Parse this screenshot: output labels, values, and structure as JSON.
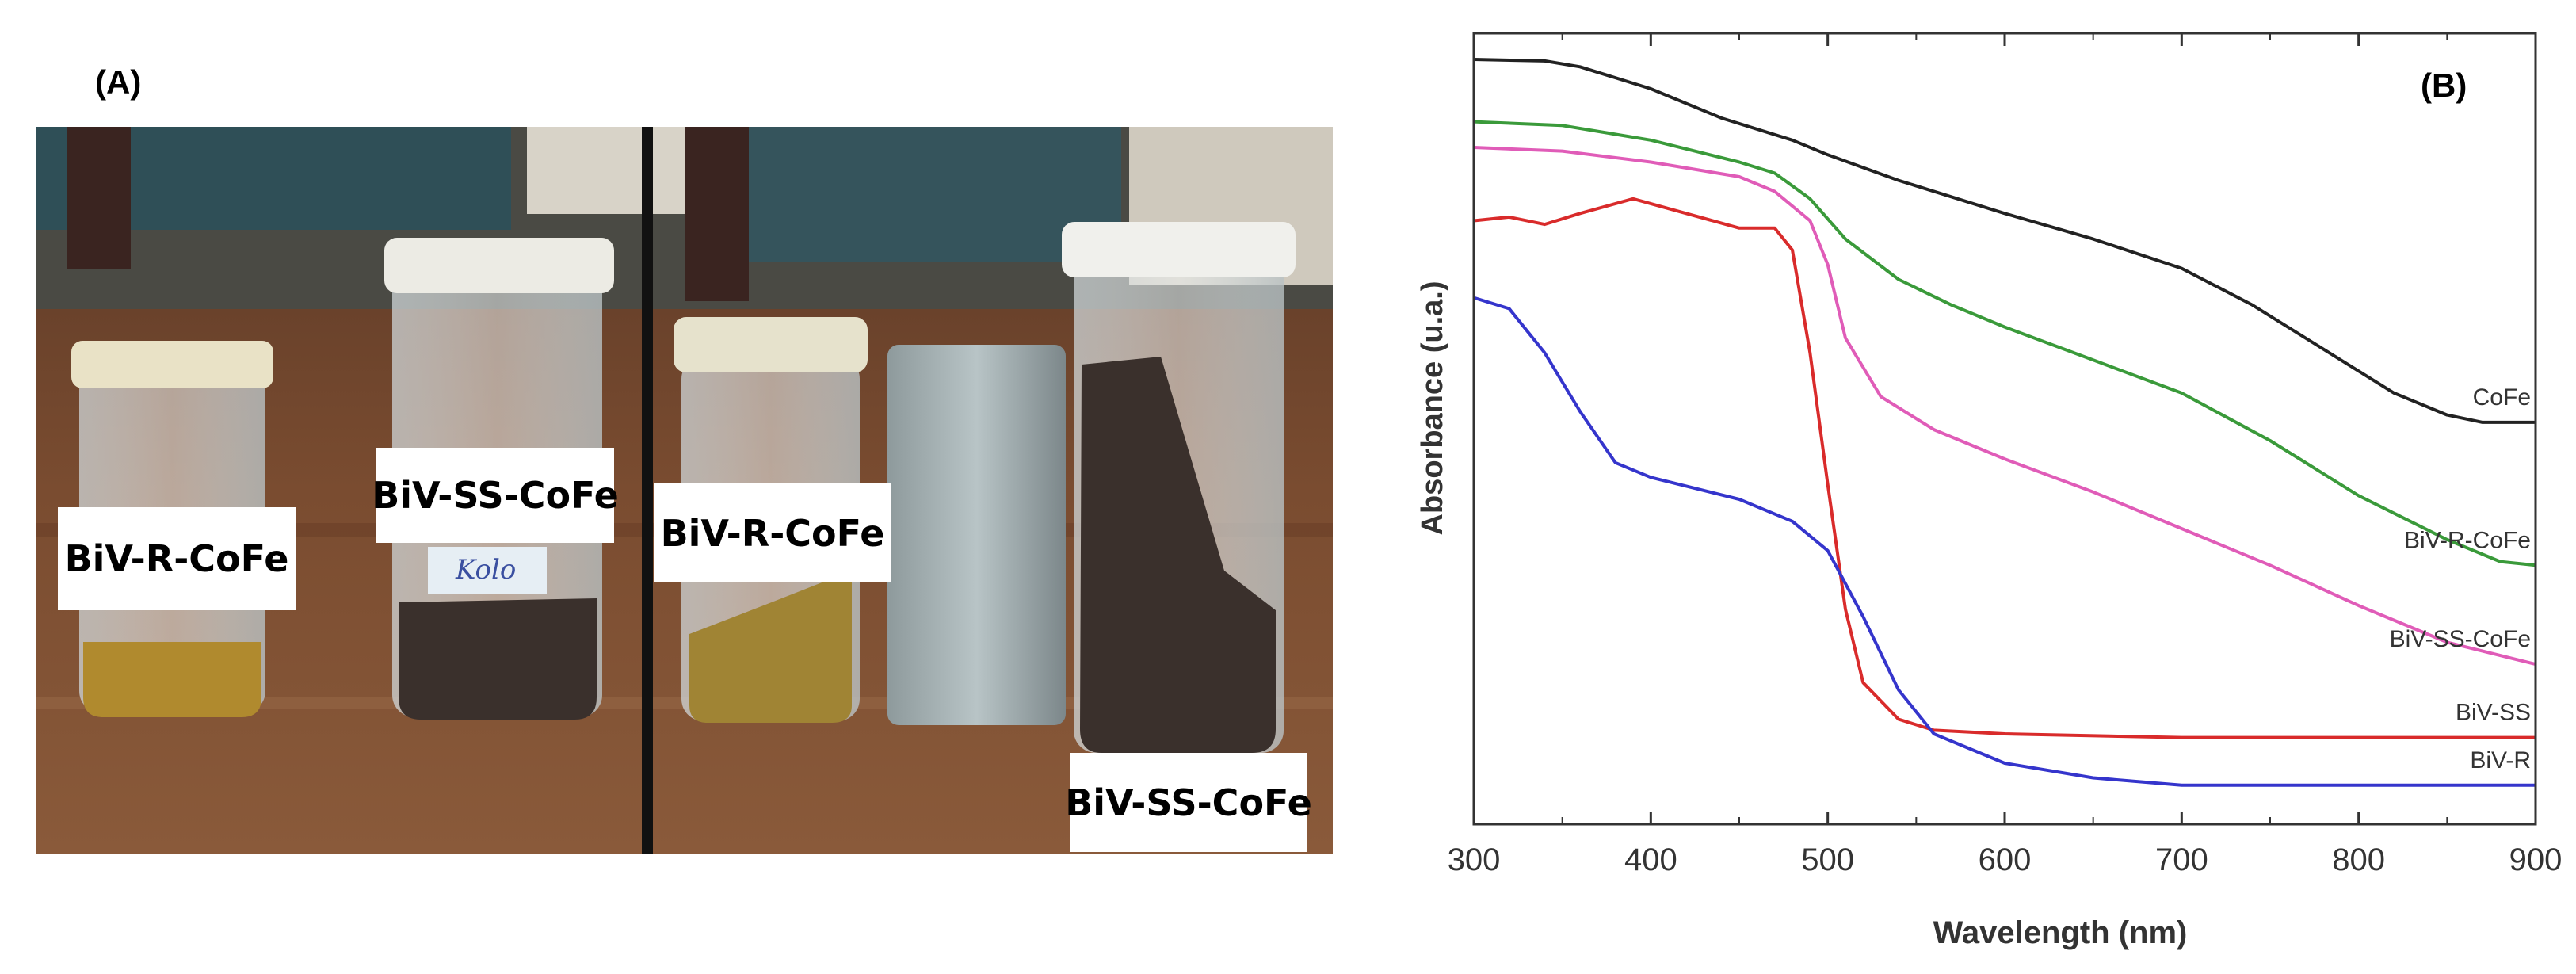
{
  "panel_a": {
    "label": "(A)",
    "sample_labels": [
      "BiV-R-CoFe",
      "BiV-SS-CoFe",
      "BiV-R-CoFe",
      "BiV-SS-CoFe"
    ],
    "vial_lid_writing": "Kolo",
    "powder_color": "#b08a2e",
    "flake_color": "#3a302c"
  },
  "chart_data": {
    "type": "line",
    "panel_label": "(B)",
    "title": "",
    "xlabel": "Wavelength (nm)",
    "ylabel": "Absorbance (u.a.)",
    "xlim": [
      300,
      900
    ],
    "ylim": [
      0,
      1
    ],
    "xticks": [
      300,
      400,
      500,
      600,
      700,
      800,
      900
    ],
    "y_tick_labels": false,
    "grid": false,
    "series": [
      {
        "name": "CoFe",
        "color": "#222222",
        "x": [
          300,
          340,
          360,
          400,
          440,
          480,
          500,
          540,
          600,
          650,
          700,
          740,
          780,
          820,
          850,
          870,
          900
        ],
        "y": [
          1.0,
          0.998,
          0.99,
          0.96,
          0.92,
          0.89,
          0.87,
          0.835,
          0.79,
          0.755,
          0.715,
          0.665,
          0.605,
          0.545,
          0.515,
          0.505,
          0.505
        ]
      },
      {
        "name": "BiV-R-CoFe",
        "color": "#3a9a3a",
        "x": [
          300,
          350,
          400,
          450,
          470,
          490,
          510,
          540,
          570,
          600,
          650,
          700,
          750,
          800,
          850,
          880,
          900
        ],
        "y": [
          0.915,
          0.91,
          0.89,
          0.86,
          0.845,
          0.81,
          0.755,
          0.7,
          0.665,
          0.635,
          0.59,
          0.545,
          0.48,
          0.405,
          0.345,
          0.315,
          0.31
        ]
      },
      {
        "name": "BiV-SS-CoFe",
        "color": "#e05cb8",
        "x": [
          300,
          350,
          400,
          450,
          470,
          490,
          500,
          510,
          530,
          560,
          600,
          650,
          700,
          750,
          800,
          850,
          900
        ],
        "y": [
          0.88,
          0.875,
          0.86,
          0.84,
          0.82,
          0.78,
          0.72,
          0.62,
          0.54,
          0.495,
          0.455,
          0.41,
          0.36,
          0.31,
          0.255,
          0.205,
          0.175
        ]
      },
      {
        "name": "BiV-SS",
        "color": "#d92b2b",
        "x": [
          300,
          320,
          340,
          360,
          390,
          420,
          450,
          470,
          480,
          490,
          500,
          510,
          520,
          540,
          560,
          600,
          700,
          800,
          900
        ],
        "y": [
          0.78,
          0.785,
          0.775,
          0.79,
          0.81,
          0.79,
          0.77,
          0.77,
          0.74,
          0.6,
          0.42,
          0.25,
          0.15,
          0.1,
          0.085,
          0.08,
          0.075,
          0.075,
          0.075
        ]
      },
      {
        "name": "BiV-R",
        "color": "#3535cc",
        "x": [
          300,
          320,
          340,
          360,
          380,
          400,
          450,
          480,
          500,
          520,
          540,
          560,
          600,
          650,
          700,
          800,
          900
        ],
        "y": [
          0.675,
          0.66,
          0.6,
          0.52,
          0.45,
          0.43,
          0.4,
          0.37,
          0.33,
          0.24,
          0.14,
          0.08,
          0.04,
          0.02,
          0.01,
          0.01,
          0.01
        ]
      }
    ]
  }
}
